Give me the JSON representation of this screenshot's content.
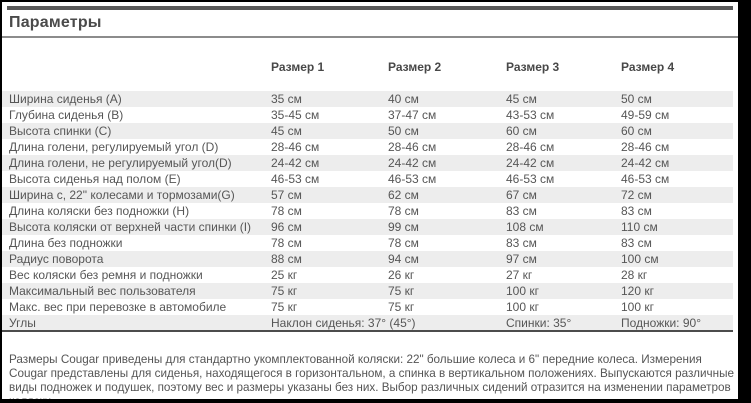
{
  "page": {
    "title": "Параметры"
  },
  "table": {
    "col_headers": [
      "",
      "Размер 1",
      "Размер 2",
      "Размер 3",
      "Размер 4"
    ],
    "rows": [
      {
        "label": "Ширина сиденья (A)",
        "values": [
          "35 см",
          "40 см",
          "45 см",
          "50 см"
        ]
      },
      {
        "label": "Глубина сиденья (B)",
        "values": [
          "35-45 см",
          "37-47 см",
          "43-53 см",
          "49-59 см"
        ]
      },
      {
        "label": "Высота спинки (C)",
        "values": [
          "45 см",
          "50 см",
          "60 см",
          "60 см"
        ]
      },
      {
        "label": "Длина голени, регулируемый угол (D)",
        "values": [
          "28-46 см",
          "28-46 см",
          "28-46 см",
          "28-46 см"
        ]
      },
      {
        "label": "Длина голени, не регулируемый угол(D)",
        "values": [
          "24-42 см",
          "24-42 см",
          "24-42 см",
          "24-42 см"
        ]
      },
      {
        "label": "Высота сиденья над полом (E)",
        "values": [
          "46-53 см",
          "46-53 см",
          "46-53 см",
          "46-53 см"
        ]
      },
      {
        "label": "Ширина с, 22\" колесами и тормозами(G)",
        "values": [
          "57 см",
          "62 см",
          "67 см",
          "72 см"
        ]
      },
      {
        "label": "Длина коляски без подножки (H)",
        "values": [
          "78 см",
          "78 см",
          "83 см",
          "83 см"
        ]
      },
      {
        "label": "Высота коляски от верхней части спинки (I)",
        "values": [
          "96 см",
          "99 см",
          "108 см",
          "110 см"
        ]
      },
      {
        "label": "Длина без подножки",
        "values": [
          "78 см",
          "78 см",
          "83 см",
          "83 см"
        ]
      },
      {
        "label": "Радиус поворота",
        "values": [
          "88 см",
          "94 см",
          "97 см",
          "100 см"
        ]
      },
      {
        "label": "Вес коляски без ремня и подножки",
        "values": [
          "25 кг",
          "26 кг",
          "27 кг",
          "28 кг"
        ]
      },
      {
        "label": "Максимальный вес пользователя",
        "values": [
          "75 кг",
          "75 кг",
          "100 кг",
          "120 кг"
        ]
      },
      {
        "label": "Макс. вес при перевозке в автомобиле",
        "values": [
          "75 кг",
          "75 кг",
          "100 кг",
          "100 кг"
        ]
      }
    ],
    "angles": {
      "label": "Углы",
      "seat_tilt": "Наклон сиденья: 37° (45°)",
      "back": "Спинки: 35°",
      "footrest": "Подножки: 90°"
    }
  },
  "footer": {
    "text": "Размеры Cougar приведены для стандартно укомплектованной коляски: 22\" большие колеса и 6\" передние колеса. Измерения Cougar представлены для сиденья, находящегося в горизонтальном, а спинка в вертикальном положениях. Выпускаются различные виды подножек и подушек, поэтому вес и размеры указаны без них. Выбор различных сидений отразится на изменении параметров коляски."
  },
  "colors": {
    "stripe": "#ededed",
    "text": "#565656",
    "title": "#4a4a4a",
    "divider": "#5a5a5a",
    "rule": "#8c8c8c",
    "frame": "#000000"
  }
}
